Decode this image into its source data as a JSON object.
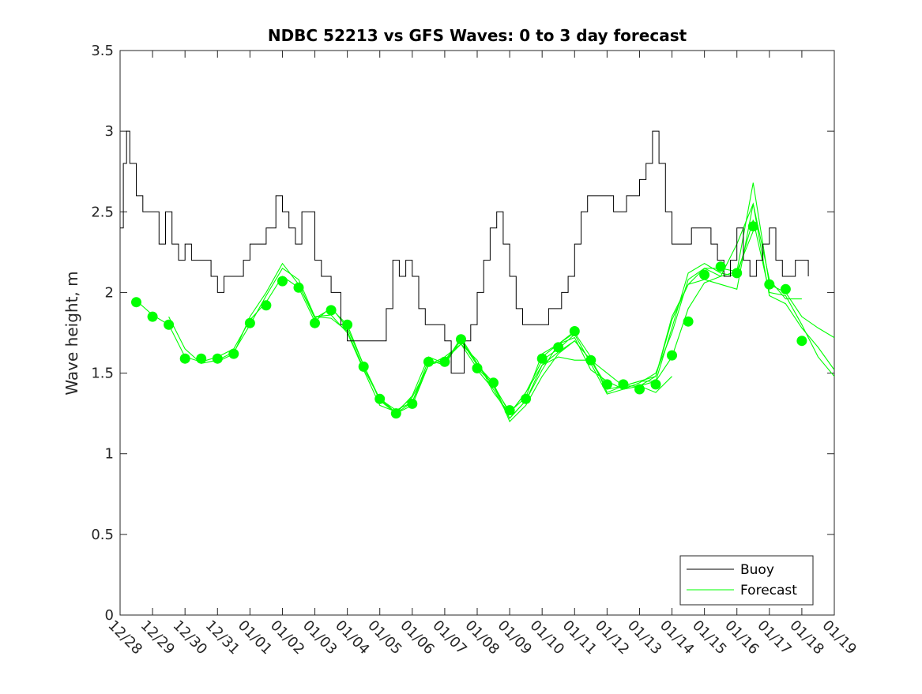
{
  "chart_data": {
    "type": "line",
    "title": "NDBC 52213 vs GFS Waves: 0 to 3 day forecast",
    "xlabel": "",
    "ylabel": "Wave height, m",
    "xlim": [
      0,
      22
    ],
    "ylim": [
      0,
      3.5
    ],
    "yticks": [
      0,
      0.5,
      1,
      1.5,
      2,
      2.5,
      3,
      3.5
    ],
    "ytick_labels": [
      "0",
      "0.5",
      "1",
      "1.5",
      "2",
      "2.5",
      "3",
      "3.5"
    ],
    "xtick_labels": [
      "12/28",
      "12/29",
      "12/30",
      "12/31",
      "01/01",
      "01/02",
      "01/03",
      "01/04",
      "01/05",
      "01/06",
      "01/07",
      "01/08",
      "01/09",
      "01/10",
      "01/11",
      "01/12",
      "01/13",
      "01/14",
      "01/15",
      "01/16",
      "01/17",
      "01/18",
      "01/19"
    ],
    "legend": {
      "location": "bottom-right",
      "entries": [
        "Buoy",
        "Forecast"
      ]
    },
    "colors": {
      "buoy": "#000000",
      "forecast": "#00ff00",
      "axes": "#262626"
    },
    "series": [
      {
        "name": "Buoy",
        "x": [
          0,
          0.1,
          0.2,
          0.3,
          0.5,
          0.7,
          1.0,
          1.2,
          1.4,
          1.6,
          1.8,
          2.0,
          2.2,
          2.5,
          2.8,
          3.0,
          3.2,
          3.5,
          3.8,
          4.0,
          4.2,
          4.5,
          4.8,
          5.0,
          5.2,
          5.4,
          5.6,
          5.8,
          6.0,
          6.2,
          6.5,
          6.8,
          7.0,
          7.2,
          7.4,
          7.6,
          7.8,
          8.0,
          8.2,
          8.4,
          8.6,
          8.8,
          9.0,
          9.2,
          9.4,
          9.6,
          9.8,
          10.0,
          10.2,
          10.4,
          10.6,
          10.8,
          11.0,
          11.2,
          11.4,
          11.6,
          11.8,
          12.0,
          12.2,
          12.4,
          12.6,
          12.8,
          13.0,
          13.2,
          13.4,
          13.6,
          13.8,
          14.0,
          14.2,
          14.4,
          14.6,
          14.8,
          15.0,
          15.2,
          15.4,
          15.6,
          15.8,
          16.0,
          16.2,
          16.4,
          16.6,
          16.8,
          17.0,
          17.2,
          17.4,
          17.6,
          17.8,
          18.0,
          18.2,
          18.4,
          18.6,
          18.8,
          19.0,
          19.2,
          19.4,
          19.6,
          19.8,
          20.0,
          20.2,
          20.4,
          20.6,
          20.8,
          21.0,
          21.2
        ],
        "y": [
          2.4,
          2.8,
          3.0,
          2.8,
          2.6,
          2.5,
          2.5,
          2.3,
          2.5,
          2.3,
          2.2,
          2.3,
          2.2,
          2.2,
          2.1,
          2.0,
          2.1,
          2.1,
          2.2,
          2.3,
          2.3,
          2.4,
          2.6,
          2.5,
          2.4,
          2.3,
          2.5,
          2.5,
          2.2,
          2.1,
          2.0,
          1.8,
          1.7,
          1.7,
          1.7,
          1.7,
          1.7,
          1.7,
          1.9,
          2.2,
          2.1,
          2.2,
          2.1,
          1.9,
          1.8,
          1.8,
          1.8,
          1.7,
          1.5,
          1.5,
          1.7,
          1.8,
          2.0,
          2.2,
          2.4,
          2.5,
          2.3,
          2.1,
          1.9,
          1.8,
          1.8,
          1.8,
          1.8,
          1.9,
          1.9,
          2.0,
          2.1,
          2.3,
          2.5,
          2.6,
          2.6,
          2.6,
          2.6,
          2.5,
          2.5,
          2.6,
          2.6,
          2.7,
          2.8,
          3.0,
          2.8,
          2.5,
          2.3,
          2.3,
          2.3,
          2.4,
          2.4,
          2.4,
          2.3,
          2.2,
          2.1,
          2.2,
          2.4,
          2.2,
          2.1,
          2.2,
          2.3,
          2.4,
          2.2,
          2.1,
          2.1,
          2.2,
          2.2,
          2.1
        ]
      },
      {
        "name": "Forecast",
        "runs": [
          {
            "x": [
              0.5,
              1.0,
              1.5,
              2.0,
              2.5,
              3.0,
              3.5,
              4.0,
              4.5,
              5.0,
              5.5,
              6.0,
              6.5,
              7.0,
              7.5,
              8.0,
              8.5,
              9.0,
              9.5,
              10.0,
              10.5,
              11.0,
              11.5,
              12.0,
              12.5,
              13.0,
              13.5,
              14.0
            ],
            "y": [
              1.95,
              1.86,
              1.8,
              1.6,
              1.57,
              1.6,
              1.65,
              1.83,
              1.94,
              2.1,
              2.03,
              1.82,
              1.91,
              1.78,
              1.55,
              1.33,
              1.25,
              1.32,
              1.58,
              1.55,
              1.71,
              1.55,
              1.42,
              1.26,
              1.35,
              1.62,
              1.68,
              1.76
            ]
          },
          {
            "x": [
              1.5,
              2.0,
              2.5,
              3.0,
              3.5,
              4.0,
              4.5,
              5.0,
              5.5,
              6.0,
              6.5,
              7.0,
              7.5,
              8.0,
              8.5,
              9.0,
              9.5,
              10.0,
              10.5,
              11.0,
              11.5,
              12.0,
              12.5,
              13.0,
              13.5,
              14.0,
              14.5,
              15.0
            ],
            "y": [
              1.85,
              1.65,
              1.56,
              1.58,
              1.63,
              1.8,
              1.98,
              2.15,
              2.08,
              1.85,
              1.86,
              1.75,
              1.52,
              1.3,
              1.26,
              1.35,
              1.55,
              1.58,
              1.68,
              1.58,
              1.38,
              1.25,
              1.38,
              1.55,
              1.6,
              1.58,
              1.58,
              1.42
            ]
          },
          {
            "x": [
              3.0,
              3.5,
              4.0,
              4.5,
              5.0,
              5.5,
              6.0,
              6.5,
              7.0,
              7.5,
              8.0,
              8.5,
              9.0,
              9.5,
              10.0,
              10.5,
              11.0,
              11.5,
              12.0,
              12.5,
              13.0,
              13.5,
              14.0,
              14.5,
              15.0,
              15.5,
              16.0,
              16.5,
              17.0
            ],
            "y": [
              1.57,
              1.62,
              1.85,
              2.0,
              2.18,
              2.05,
              1.84,
              1.9,
              1.8,
              1.55,
              1.34,
              1.25,
              1.36,
              1.6,
              1.56,
              1.72,
              1.56,
              1.42,
              1.22,
              1.33,
              1.52,
              1.68,
              1.72,
              1.52,
              1.45,
              1.4,
              1.42,
              1.38,
              1.48
            ]
          },
          {
            "x": [
              5.5,
              6.0,
              6.5,
              7.0,
              7.5,
              8.0,
              8.5,
              9.0,
              9.5,
              10.0,
              10.5,
              11.0,
              11.5,
              12.0,
              12.5,
              13.0,
              13.5,
              14.0,
              14.5,
              15.0,
              15.5,
              16.0,
              16.5,
              17.0,
              17.5,
              18.0,
              18.5,
              19.0,
              19.5
            ],
            "y": [
              2.05,
              1.85,
              1.84,
              1.76,
              1.53,
              1.34,
              1.27,
              1.32,
              1.55,
              1.58,
              1.7,
              1.55,
              1.44,
              1.2,
              1.3,
              1.48,
              1.62,
              1.7,
              1.58,
              1.5,
              1.42,
              1.45,
              1.45,
              1.6,
              1.9,
              2.06,
              2.1,
              2.13,
              2.38
            ]
          },
          {
            "x": [
              8.0,
              8.5,
              9.0,
              9.5,
              10.0,
              10.5,
              11.0,
              11.5,
              12.0,
              12.5,
              13.0,
              13.5,
              14.0,
              14.5,
              15.0,
              15.5,
              16.0,
              16.5,
              17.0,
              17.5,
              18.0,
              18.5,
              19.0,
              19.5,
              20.0,
              20.5,
              21.0
            ],
            "y": [
              1.35,
              1.25,
              1.3,
              1.55,
              1.6,
              1.68,
              1.53,
              1.43,
              1.25,
              1.38,
              1.58,
              1.65,
              1.74,
              1.56,
              1.37,
              1.4,
              1.44,
              1.5,
              1.75,
              2.08,
              2.15,
              2.1,
              2.3,
              2.55,
              2.08,
              1.96,
              1.96
            ]
          },
          {
            "x": [
              11.0,
              11.5,
              12.0,
              12.5,
              13.0,
              13.5,
              14.0,
              14.5,
              15.0,
              15.5,
              16.0,
              16.5,
              17.0,
              17.5,
              18.0,
              18.5,
              19.0,
              19.5,
              20.0,
              20.5,
              21.0,
              21.5,
              22.0
            ],
            "y": [
              1.52,
              1.4,
              1.22,
              1.33,
              1.55,
              1.63,
              1.7,
              1.58,
              1.4,
              1.42,
              1.45,
              1.48,
              1.83,
              2.05,
              2.15,
              2.15,
              2.13,
              2.68,
              2.05,
              2.0,
              1.85,
              1.78,
              1.72
            ]
          },
          {
            "x": [
              13.0,
              13.5,
              14.0,
              14.5,
              15.0,
              15.5,
              16.0,
              16.5,
              17.0,
              17.5,
              18.0,
              18.5,
              19.0,
              19.5,
              20.0,
              20.5,
              21.0,
              21.5,
              22.0
            ],
            "y": [
              1.6,
              1.68,
              1.75,
              1.6,
              1.38,
              1.42,
              1.42,
              1.45,
              1.78,
              2.12,
              2.18,
              2.12,
              2.1,
              2.45,
              2.0,
              1.98,
              1.8,
              1.6,
              1.48
            ]
          },
          {
            "x": [
              16.0,
              16.5,
              17.0,
              17.5,
              18.0,
              18.5,
              19.0,
              19.5,
              20.0,
              20.5,
              21.0,
              21.5,
              22.0
            ],
            "y": [
              1.42,
              1.48,
              1.85,
              2.05,
              2.08,
              2.05,
              2.02,
              2.55,
              1.98,
              1.93,
              1.78,
              1.66,
              1.52
            ]
          }
        ],
        "markers": {
          "x": [
            0.5,
            1.0,
            1.5,
            2.0,
            2.5,
            3.0,
            3.5,
            4.0,
            4.5,
            5.0,
            5.5,
            6.0,
            6.5,
            7.0,
            7.5,
            8.0,
            8.5,
            9.0,
            9.5,
            10.0,
            10.5,
            11.0,
            11.5,
            12.0,
            12.5,
            13.0,
            13.5,
            14.0,
            14.5,
            15.0,
            15.5,
            16.0,
            16.5,
            17.0,
            17.5,
            18.0,
            18.5,
            19.0,
            19.5,
            20.0,
            20.5,
            21.0
          ],
          "y": [
            1.94,
            1.85,
            1.8,
            1.59,
            1.59,
            1.59,
            1.62,
            1.81,
            1.92,
            2.07,
            2.03,
            1.81,
            1.89,
            1.8,
            1.54,
            1.34,
            1.25,
            1.31,
            1.57,
            1.57,
            1.71,
            1.53,
            1.44,
            1.27,
            1.34,
            1.59,
            1.66,
            1.76,
            1.58,
            1.43,
            1.43,
            1.4,
            1.43,
            1.61,
            1.82,
            2.11,
            2.16,
            2.12,
            2.41,
            2.05,
            2.02,
            1.7
          ]
        }
      }
    ]
  }
}
